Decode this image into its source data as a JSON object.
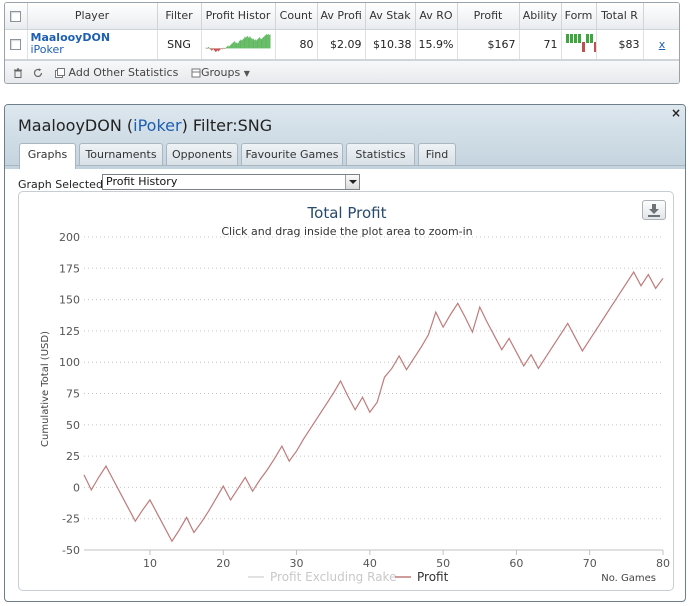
{
  "stats_table": {
    "columns": [
      "",
      "Player",
      "Filter",
      "Profit Histor",
      "Count",
      "Av Profi",
      "Av Stak",
      "Av RO",
      "Profit",
      "Ability",
      "Form",
      "Total R",
      ""
    ],
    "row": {
      "player_name": "MaalooyDON",
      "player_site": "iPoker",
      "filter": "SNG",
      "count": "80",
      "av_profit": "$2.09",
      "av_stake": "$10.38",
      "av_roi": "15.9%",
      "profit": "$167",
      "ability": "71",
      "total_rake": "$83",
      "remove_label": "x",
      "form": [
        1,
        1,
        1,
        1,
        -1,
        1,
        1,
        -1
      ]
    },
    "footer": {
      "add_stats_label": "Add Other Statistics",
      "groups_label": "Groups"
    }
  },
  "dialog": {
    "title_player": "MaalooyDON",
    "title_open": " (",
    "title_site": "iPoker",
    "title_close": ")",
    "title_filter": " Filter:SNG",
    "close_label": "×",
    "tabs": [
      "Graphs",
      "Tournaments",
      "Opponents",
      "Favourite Games",
      "Statistics",
      "Find"
    ],
    "active_tab": 0,
    "graph_select_label": "Graph Selected:",
    "graph_select_value": "Profit History"
  },
  "chart_data": {
    "type": "line",
    "title": "Total Profit",
    "subtitle": "Click and drag inside the plot area to zoom-in",
    "xlabel": "No. Games",
    "ylabel": "Cumulative Total (USD)",
    "xlim": [
      1,
      80
    ],
    "ylim": [
      -50,
      200
    ],
    "xticks": [
      10,
      20,
      30,
      40,
      50,
      60,
      70,
      80
    ],
    "yticks": [
      -50,
      -25,
      0,
      25,
      50,
      75,
      100,
      125,
      150,
      175,
      200
    ],
    "grid": "horizontal-dotted",
    "legend_position": "bottom-center",
    "series": [
      {
        "name": "Profit Excluding Rake",
        "color": "#d9d9d9",
        "values": []
      },
      {
        "name": "Profit",
        "color": "#bf7a7a",
        "x": [
          1,
          2,
          3,
          4,
          5,
          6,
          7,
          8,
          9,
          10,
          11,
          12,
          13,
          14,
          15,
          16,
          17,
          18,
          19,
          20,
          21,
          22,
          23,
          24,
          25,
          26,
          27,
          28,
          29,
          30,
          31,
          32,
          33,
          34,
          35,
          36,
          37,
          38,
          39,
          40,
          41,
          42,
          43,
          44,
          45,
          46,
          47,
          48,
          49,
          50,
          51,
          52,
          53,
          54,
          55,
          56,
          57,
          58,
          59,
          60,
          61,
          62,
          63,
          64,
          65,
          66,
          67,
          68,
          69,
          70,
          71,
          72,
          73,
          74,
          75,
          76,
          77,
          78,
          79,
          80
        ],
        "values": [
          10,
          -2,
          8,
          17,
          6,
          -5,
          -16,
          -27,
          -18,
          -10,
          -21,
          -32,
          -43,
          -34,
          -24,
          -36,
          -28,
          -19,
          -9,
          1,
          -10,
          -1,
          8,
          -3,
          6,
          14,
          23,
          33,
          21,
          29,
          39,
          48,
          57,
          66,
          75,
          85,
          73,
          62,
          72,
          60,
          68,
          88,
          95,
          105,
          94,
          103,
          112,
          122,
          140,
          128,
          138,
          147,
          136,
          124,
          144,
          132,
          121,
          110,
          119,
          108,
          97,
          106,
          95,
          104,
          113,
          122,
          131,
          120,
          109,
          118,
          127,
          136,
          145,
          154,
          163,
          172,
          161,
          170,
          159,
          167
        ]
      }
    ]
  }
}
